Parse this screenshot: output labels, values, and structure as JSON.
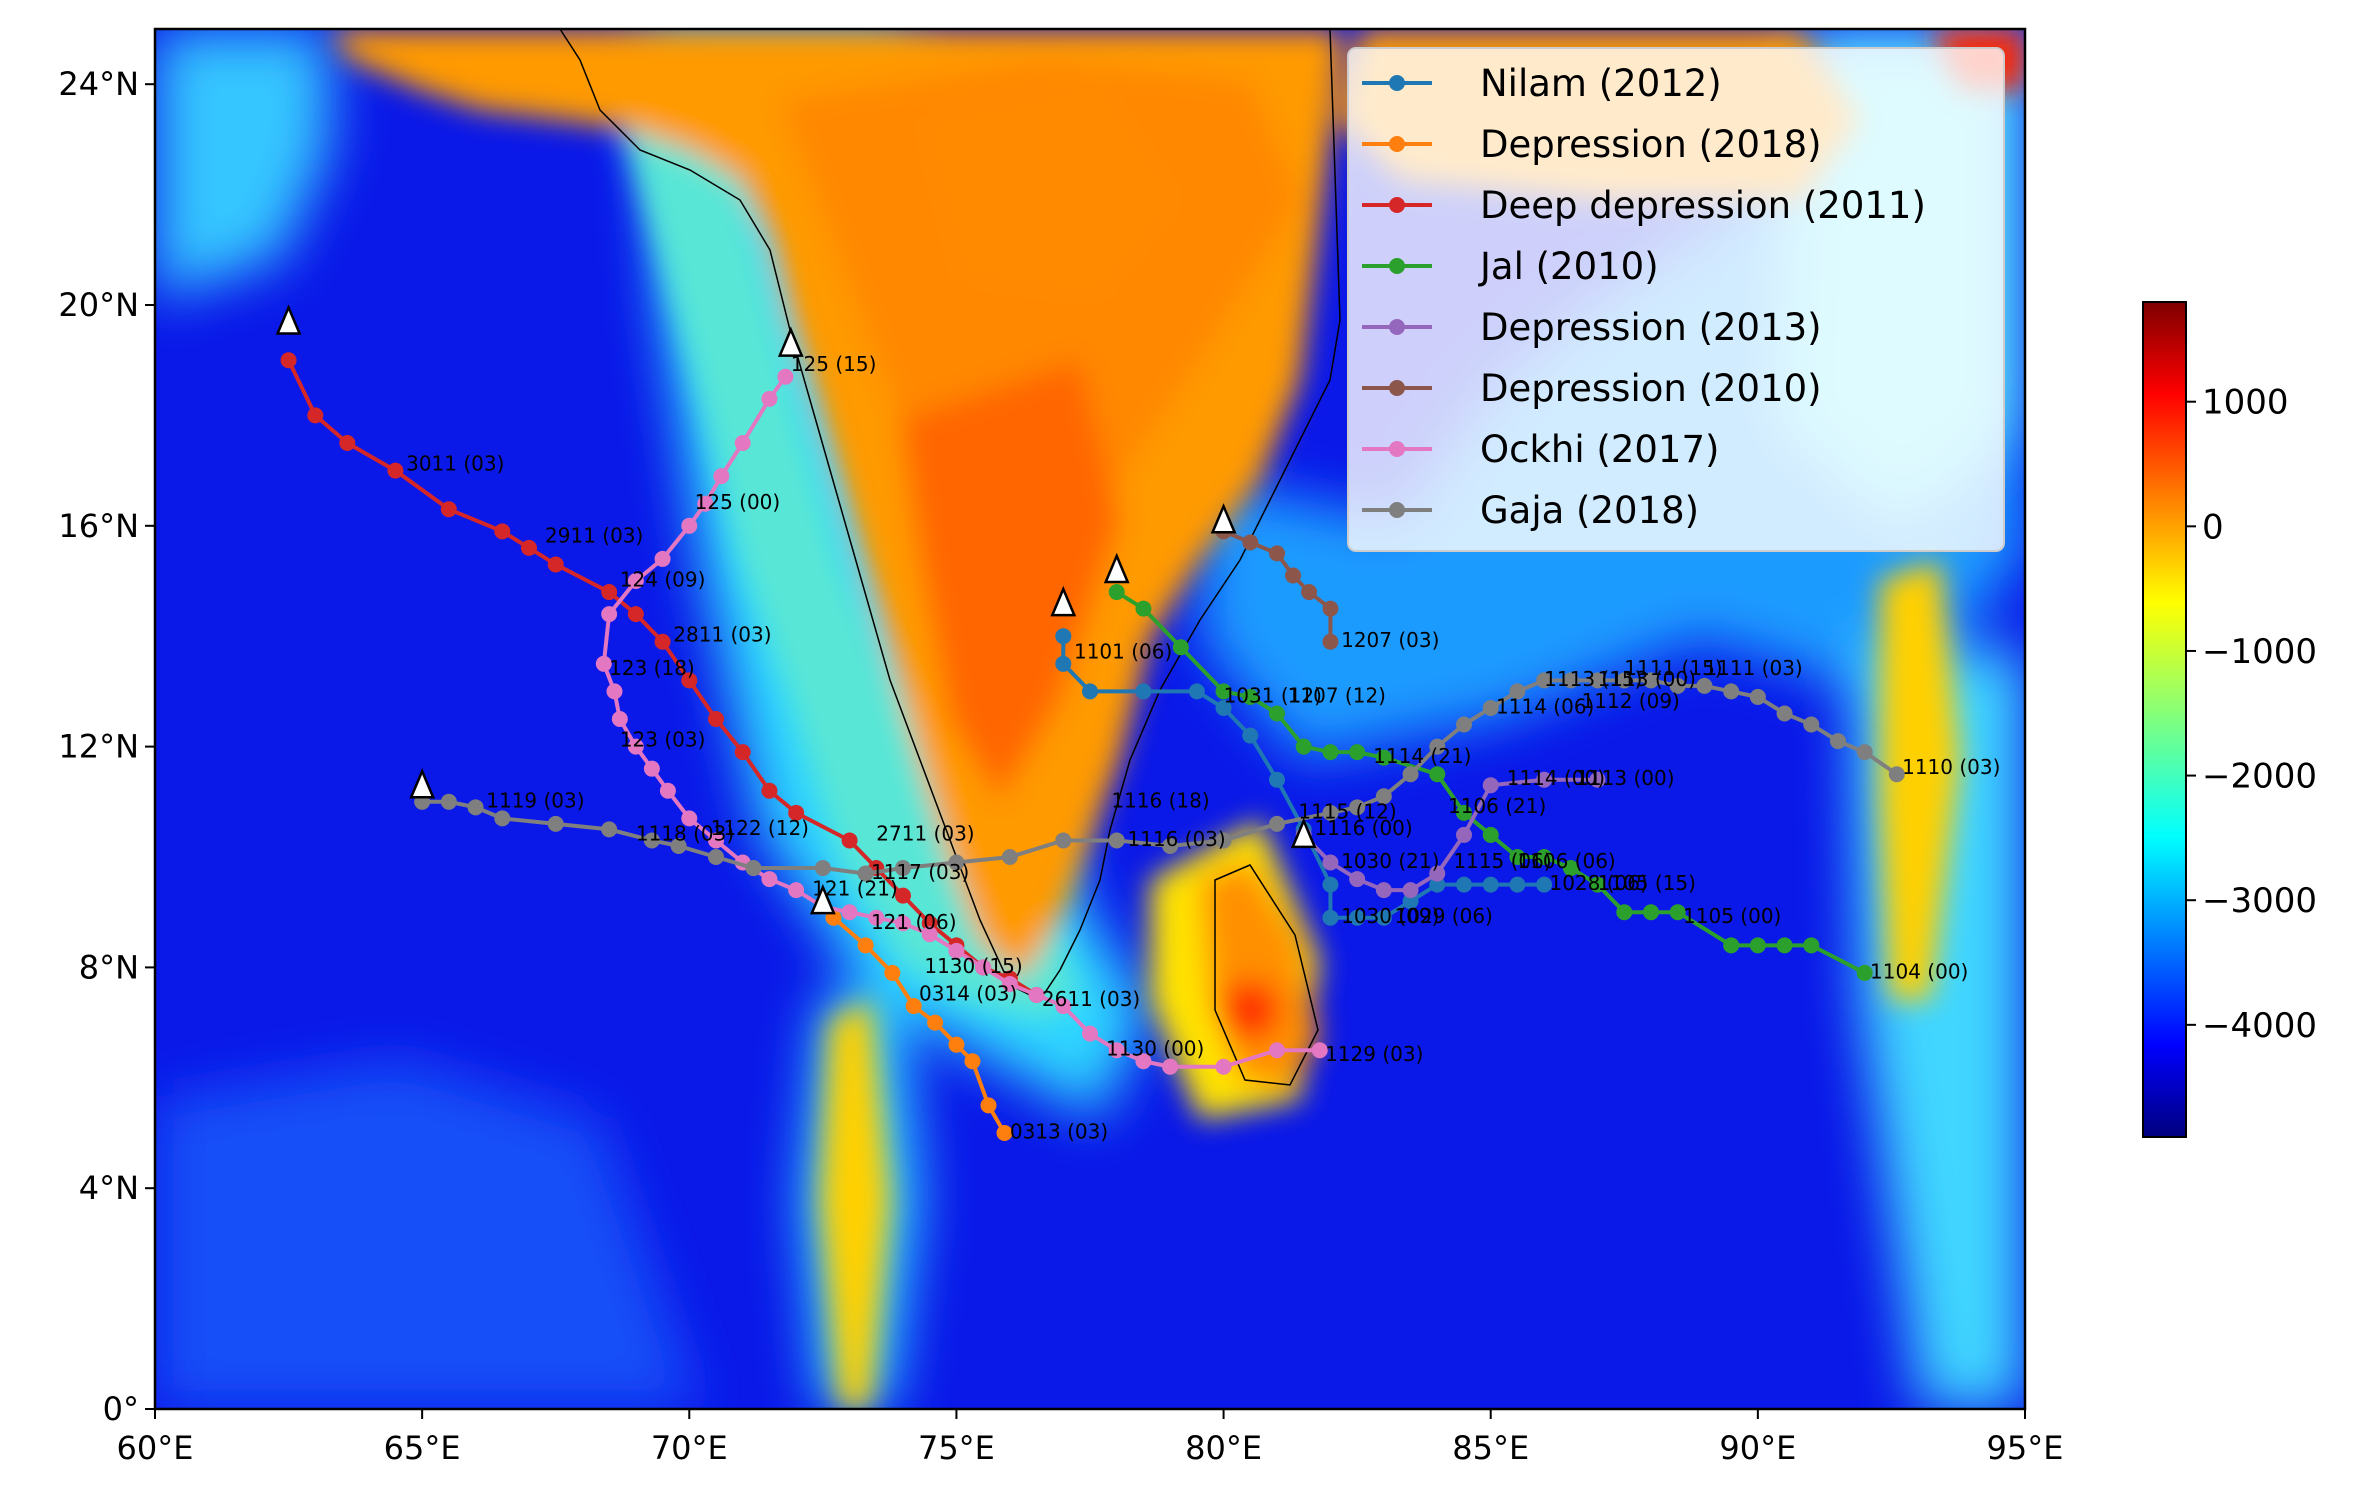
{
  "map": {
    "extent": {
      "lon": [
        60,
        95
      ],
      "lat": [
        0,
        25
      ]
    },
    "x_ticks": [
      {
        "value": 60,
        "label": "60°E"
      },
      {
        "value": 65,
        "label": "65°E"
      },
      {
        "value": 70,
        "label": "70°E"
      },
      {
        "value": 75,
        "label": "75°E"
      },
      {
        "value": 80,
        "label": "80°E"
      },
      {
        "value": 85,
        "label": "85°E"
      },
      {
        "value": 90,
        "label": "90°E"
      },
      {
        "value": 95,
        "label": "95°E"
      }
    ],
    "y_ticks": [
      {
        "value": 0,
        "label": "0°"
      },
      {
        "value": 4,
        "label": "4°N"
      },
      {
        "value": 8,
        "label": "8°N"
      },
      {
        "value": 12,
        "label": "12°N"
      },
      {
        "value": 16,
        "label": "16°N"
      },
      {
        "value": 20,
        "label": "20°N"
      },
      {
        "value": 24,
        "label": "24°N"
      }
    ],
    "background": "bathymetry/topography shaded with jet colormap"
  },
  "colorbar": {
    "colormap": "jet",
    "range": [
      -4900,
      1800
    ],
    "ticks": [
      {
        "value": 1000,
        "label": "1000"
      },
      {
        "value": 0,
        "label": "0"
      },
      {
        "value": -1000,
        "label": "−1000"
      },
      {
        "value": -2000,
        "label": "−2000"
      },
      {
        "value": -3000,
        "label": "−3000"
      },
      {
        "value": -4000,
        "label": "−4000"
      }
    ]
  },
  "chart_data": {
    "type": "map-tracks",
    "legend_placement": "top-right",
    "series": [
      {
        "name": "Nilam (2012)",
        "color": "#1f77b4",
        "points": [
          [
            77.0,
            14.0
          ],
          [
            77.0,
            13.5
          ],
          [
            77.5,
            13.0
          ],
          [
            78.5,
            13.0
          ],
          [
            79.5,
            13.0
          ],
          [
            80.0,
            12.7
          ],
          [
            80.5,
            12.2
          ],
          [
            81.0,
            11.4
          ],
          [
            81.5,
            10.5
          ],
          [
            82.0,
            9.5
          ],
          [
            82.0,
            8.9
          ],
          [
            82.5,
            8.9
          ],
          [
            83.0,
            8.9
          ],
          [
            83.5,
            9.2
          ],
          [
            84.0,
            9.5
          ],
          [
            84.5,
            9.5
          ],
          [
            85.0,
            9.5
          ],
          [
            85.5,
            9.5
          ],
          [
            86.0,
            9.5
          ]
        ],
        "start": [
          77.0,
          14.6
        ],
        "labels": [
          {
            "text": "1101 (06)",
            "lon": 77.2,
            "lat": 13.6
          },
          {
            "text": "1031 (12)",
            "lon": 80.0,
            "lat": 12.8
          },
          {
            "text": "1030 (21)",
            "lon": 82.2,
            "lat": 9.8
          },
          {
            "text": "1030 (09)",
            "lon": 82.2,
            "lat": 8.8
          },
          {
            "text": "1029 (06)",
            "lon": 83.2,
            "lat": 8.8
          },
          {
            "text": "1028 (06)",
            "lon": 86.1,
            "lat": 9.4
          }
        ]
      },
      {
        "name": "Depression (2018)",
        "color": "#ff7f0e",
        "points": [
          [
            72.7,
            8.9
          ],
          [
            73.3,
            8.4
          ],
          [
            73.8,
            7.9
          ],
          [
            74.2,
            7.3
          ],
          [
            74.6,
            7.0
          ],
          [
            75.0,
            6.6
          ],
          [
            75.3,
            6.3
          ],
          [
            75.6,
            5.5
          ],
          [
            75.9,
            5.0
          ]
        ],
        "start": [
          72.5,
          9.2
        ],
        "labels": [
          {
            "text": "0314 (03)",
            "lon": 74.3,
            "lat": 7.4
          },
          {
            "text": "0313 (03)",
            "lon": 76.0,
            "lat": 4.9
          }
        ]
      },
      {
        "name": "Deep depression (2011)",
        "color": "#d62728",
        "points": [
          [
            62.5,
            19.0
          ],
          [
            63.0,
            18.0
          ],
          [
            63.6,
            17.5
          ],
          [
            64.5,
            17.0
          ],
          [
            65.5,
            16.3
          ],
          [
            66.5,
            15.9
          ],
          [
            67.0,
            15.6
          ],
          [
            67.5,
            15.3
          ],
          [
            68.5,
            14.8
          ],
          [
            69.0,
            14.4
          ],
          [
            69.5,
            13.9
          ],
          [
            70.0,
            13.2
          ],
          [
            70.5,
            12.5
          ],
          [
            71.0,
            11.9
          ],
          [
            71.5,
            11.2
          ],
          [
            72.0,
            10.8
          ],
          [
            73.0,
            10.3
          ],
          [
            73.5,
            9.8
          ],
          [
            74.0,
            9.3
          ],
          [
            74.5,
            8.8
          ],
          [
            75.0,
            8.4
          ],
          [
            75.5,
            8.0
          ],
          [
            76.0,
            7.8
          ],
          [
            76.5,
            7.5
          ]
        ],
        "start": [
          62.5,
          19.7
        ],
        "labels": [
          {
            "text": "3011 (03)",
            "lon": 64.7,
            "lat": 17.0
          },
          {
            "text": "2911 (03)",
            "lon": 67.3,
            "lat": 15.7
          },
          {
            "text": "2811 (03)",
            "lon": 69.7,
            "lat": 13.9
          },
          {
            "text": "2711 (03)",
            "lon": 73.5,
            "lat": 10.3
          },
          {
            "text": "2611 (03)",
            "lon": 76.6,
            "lat": 7.3
          }
        ]
      },
      {
        "name": "Jal (2010)",
        "color": "#2ca02c",
        "points": [
          [
            78.0,
            14.8
          ],
          [
            78.5,
            14.5
          ],
          [
            79.2,
            13.8
          ],
          [
            80.0,
            13.0
          ],
          [
            80.5,
            12.9
          ],
          [
            81.0,
            12.6
          ],
          [
            81.5,
            12.0
          ],
          [
            82.0,
            11.9
          ],
          [
            82.5,
            11.9
          ],
          [
            83.0,
            11.8
          ],
          [
            84.0,
            11.5
          ],
          [
            84.5,
            10.8
          ],
          [
            85.0,
            10.4
          ],
          [
            85.5,
            10.0
          ],
          [
            86.0,
            10.0
          ],
          [
            86.5,
            9.8
          ],
          [
            87.0,
            9.5
          ],
          [
            87.5,
            9.0
          ],
          [
            88.0,
            9.0
          ],
          [
            88.5,
            9.0
          ],
          [
            89.5,
            8.4
          ],
          [
            90.0,
            8.4
          ],
          [
            90.5,
            8.4
          ],
          [
            91.0,
            8.4
          ],
          [
            92.0,
            7.9
          ]
        ],
        "start": [
          78.0,
          15.2
        ],
        "labels": [
          {
            "text": "1107 (12)",
            "lon": 81.2,
            "lat": 12.8
          },
          {
            "text": "1106 (21)",
            "lon": 84.2,
            "lat": 10.8
          },
          {
            "text": "1106 (06)",
            "lon": 85.5,
            "lat": 9.8
          },
          {
            "text": "1105 (15)",
            "lon": 87.0,
            "lat": 9.4
          },
          {
            "text": "1105 (00)",
            "lon": 88.6,
            "lat": 8.8
          },
          {
            "text": "1104 (00)",
            "lon": 92.1,
            "lat": 7.8
          }
        ]
      },
      {
        "name": "Depression (2013)",
        "color": "#9467bd",
        "points": [
          [
            81.5,
            10.4
          ],
          [
            82.0,
            9.9
          ],
          [
            82.5,
            9.6
          ],
          [
            83.0,
            9.4
          ],
          [
            83.5,
            9.4
          ],
          [
            84.0,
            9.7
          ],
          [
            84.5,
            10.4
          ],
          [
            85.0,
            11.3
          ],
          [
            86.0,
            11.4
          ],
          [
            87.0,
            11.4
          ]
        ],
        "start": [
          81.5,
          10.4
        ],
        "labels": [
          {
            "text": "1115 (06)",
            "lon": 84.3,
            "lat": 9.8
          },
          {
            "text": "1114 (00)",
            "lon": 85.3,
            "lat": 11.3
          },
          {
            "text": "1113 (00)",
            "lon": 86.6,
            "lat": 11.3
          }
        ]
      },
      {
        "name": "Depression (2010)",
        "color": "#8c564b",
        "points": [
          [
            80.0,
            15.9
          ],
          [
            80.5,
            15.7
          ],
          [
            81.0,
            15.5
          ],
          [
            81.3,
            15.1
          ],
          [
            81.6,
            14.8
          ],
          [
            82.0,
            14.5
          ],
          [
            82.0,
            13.9
          ]
        ],
        "start": [
          80.0,
          16.1
        ],
        "labels": [
          {
            "text": "1207 (03)",
            "lon": 82.2,
            "lat": 13.8
          }
        ]
      },
      {
        "name": "Ockhi (2017)",
        "color": "#e377c2",
        "points": [
          [
            71.8,
            18.7
          ],
          [
            71.5,
            18.3
          ],
          [
            71.0,
            17.5
          ],
          [
            70.6,
            16.9
          ],
          [
            70.3,
            16.4
          ],
          [
            70.0,
            16.0
          ],
          [
            69.5,
            15.4
          ],
          [
            69.0,
            15.0
          ],
          [
            68.5,
            14.4
          ],
          [
            68.4,
            13.5
          ],
          [
            68.6,
            13.0
          ],
          [
            68.7,
            12.5
          ],
          [
            69.0,
            12.0
          ],
          [
            69.3,
            11.6
          ],
          [
            69.6,
            11.2
          ],
          [
            70.0,
            10.7
          ],
          [
            70.5,
            10.3
          ],
          [
            71.0,
            9.9
          ],
          [
            71.5,
            9.6
          ],
          [
            72.0,
            9.4
          ],
          [
            72.5,
            9.1
          ],
          [
            73.0,
            9.0
          ],
          [
            73.5,
            8.9
          ],
          [
            74.0,
            8.8
          ],
          [
            74.5,
            8.6
          ],
          [
            75.0,
            8.3
          ],
          [
            75.5,
            8.0
          ],
          [
            76.0,
            7.7
          ],
          [
            76.5,
            7.5
          ],
          [
            77.0,
            7.3
          ],
          [
            77.5,
            6.8
          ],
          [
            78.0,
            6.5
          ],
          [
            78.5,
            6.3
          ],
          [
            79.0,
            6.2
          ],
          [
            80.0,
            6.2
          ],
          [
            81.0,
            6.5
          ],
          [
            81.8,
            6.5
          ]
        ],
        "start": [
          71.9,
          19.3
        ],
        "labels": [
          {
            "text": "125 (15)",
            "lon": 71.9,
            "lat": 18.8
          },
          {
            "text": "125 (00)",
            "lon": 70.1,
            "lat": 16.3
          },
          {
            "text": "124 (09)",
            "lon": 68.7,
            "lat": 14.9
          },
          {
            "text": "123 (18)",
            "lon": 68.5,
            "lat": 13.3
          },
          {
            "text": "123 (03)",
            "lon": 68.7,
            "lat": 12.0
          },
          {
            "text": "121 (21)",
            "lon": 72.3,
            "lat": 9.3
          },
          {
            "text": "121 (06)",
            "lon": 73.4,
            "lat": 8.7
          },
          {
            "text": "1130 (15)",
            "lon": 74.4,
            "lat": 7.9
          },
          {
            "text": "1130 (00)",
            "lon": 77.8,
            "lat": 6.4
          },
          {
            "text": "1129 (03)",
            "lon": 81.9,
            "lat": 6.3
          }
        ]
      },
      {
        "name": "Gaja (2018)",
        "color": "#7f7f7f",
        "points": [
          [
            65.0,
            11.0
          ],
          [
            65.5,
            11.0
          ],
          [
            66.0,
            10.9
          ],
          [
            66.5,
            10.7
          ],
          [
            67.5,
            10.6
          ],
          [
            68.5,
            10.5
          ],
          [
            69.3,
            10.3
          ],
          [
            69.8,
            10.2
          ],
          [
            70.5,
            10.0
          ],
          [
            71.2,
            9.8
          ],
          [
            72.5,
            9.8
          ],
          [
            73.3,
            9.7
          ],
          [
            74.0,
            9.8
          ],
          [
            75.0,
            9.9
          ],
          [
            76.0,
            10.0
          ],
          [
            77.0,
            10.3
          ],
          [
            78.0,
            10.3
          ],
          [
            79.0,
            10.2
          ],
          [
            80.0,
            10.3
          ],
          [
            81.0,
            10.6
          ],
          [
            82.0,
            10.8
          ],
          [
            82.5,
            10.9
          ],
          [
            83.0,
            11.1
          ],
          [
            83.5,
            11.5
          ],
          [
            84.0,
            12.0
          ],
          [
            84.5,
            12.4
          ],
          [
            85.0,
            12.7
          ],
          [
            85.5,
            13.0
          ],
          [
            86.0,
            13.2
          ],
          [
            86.5,
            13.2
          ],
          [
            87.0,
            13.2
          ],
          [
            87.5,
            13.2
          ],
          [
            88.0,
            13.2
          ],
          [
            88.5,
            13.1
          ],
          [
            89.0,
            13.1
          ],
          [
            89.5,
            13.0
          ],
          [
            90.0,
            12.9
          ],
          [
            90.5,
            12.6
          ],
          [
            91.0,
            12.4
          ],
          [
            91.5,
            12.1
          ],
          [
            92.0,
            11.9
          ],
          [
            92.6,
            11.5
          ]
        ],
        "start": [
          65.0,
          11.3
        ],
        "labels": [
          {
            "text": "1119 (03)",
            "lon": 66.2,
            "lat": 10.9
          },
          {
            "text": "1118 (03)",
            "lon": 69.0,
            "lat": 10.3
          },
          {
            "text": "1122 (12)",
            "lon": 70.4,
            "lat": 10.4
          },
          {
            "text": "1117 (03)",
            "lon": 73.4,
            "lat": 9.6
          },
          {
            "text": "1116 (18)",
            "lon": 77.9,
            "lat": 10.9
          },
          {
            "text": "1116 (03)",
            "lon": 78.2,
            "lat": 10.2
          },
          {
            "text": "1116 (00)",
            "lon": 81.7,
            "lat": 10.4
          },
          {
            "text": "1115 (12)",
            "lon": 81.4,
            "lat": 10.7
          },
          {
            "text": "1114 (21)",
            "lon": 82.8,
            "lat": 11.7
          },
          {
            "text": "1114 (06)",
            "lon": 85.1,
            "lat": 12.6
          },
          {
            "text": "1113 (15)",
            "lon": 86.0,
            "lat": 13.1
          },
          {
            "text": "1113 (00)",
            "lon": 87.0,
            "lat": 13.1
          },
          {
            "text": "1112 (09)",
            "lon": 86.7,
            "lat": 12.7
          },
          {
            "text": "1111 (15)",
            "lon": 87.5,
            "lat": 13.3
          },
          {
            "text": "1111 (03)",
            "lon": 89.0,
            "lat": 13.3
          },
          {
            "text": "1110 (03)",
            "lon": 92.7,
            "lat": 11.5
          }
        ]
      }
    ]
  }
}
